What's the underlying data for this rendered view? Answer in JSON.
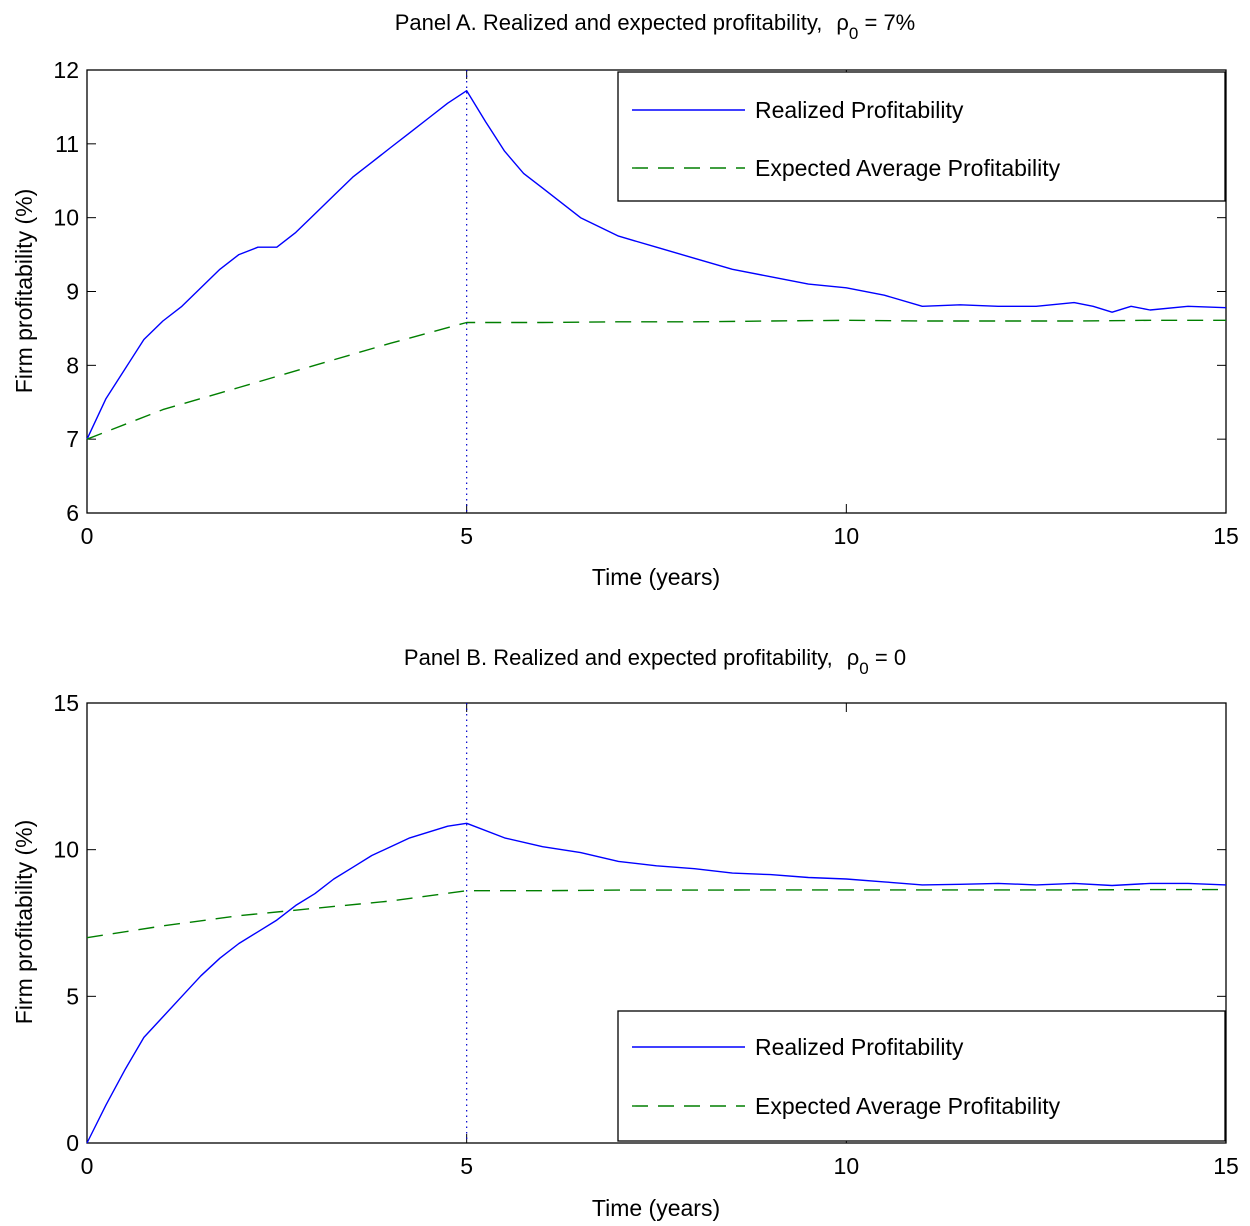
{
  "chart_data": [
    {
      "type": "line",
      "panel": "A",
      "title": "Panel A.   Realized and expected profitability,",
      "title_symbol": "ρ",
      "title_subscript": "0",
      "title_suffix": " = 7%",
      "xlabel": "Time (years)",
      "ylabel": "Firm profitability (%)",
      "xlim": [
        0,
        15
      ],
      "ylim": [
        6,
        12
      ],
      "xticks": [
        0,
        5,
        10,
        15
      ],
      "yticks": [
        6,
        7,
        8,
        9,
        10,
        11,
        12
      ],
      "grid": false,
      "legend_position": "top-right",
      "vline_x": 5,
      "series": [
        {
          "name": "Realized Profitability",
          "color": "#0000ff",
          "style": "solid",
          "x": [
            0,
            0.25,
            0.5,
            0.75,
            1.0,
            1.25,
            1.5,
            1.75,
            2.0,
            2.25,
            2.5,
            2.75,
            3.0,
            3.25,
            3.5,
            3.75,
            4.0,
            4.25,
            4.5,
            4.75,
            5.0,
            5.25,
            5.5,
            5.75,
            6.0,
            6.5,
            7.0,
            7.5,
            8.0,
            8.5,
            9.0,
            9.5,
            10.0,
            10.5,
            11.0,
            11.5,
            12.0,
            12.5,
            13.0,
            13.25,
            13.5,
            13.75,
            14.0,
            14.5,
            15.0
          ],
          "y": [
            7.0,
            7.55,
            7.95,
            8.35,
            8.6,
            8.8,
            9.05,
            9.3,
            9.5,
            9.6,
            9.6,
            9.8,
            10.05,
            10.3,
            10.55,
            10.75,
            10.95,
            11.15,
            11.35,
            11.55,
            11.72,
            11.3,
            10.9,
            10.6,
            10.4,
            10.0,
            9.75,
            9.6,
            9.45,
            9.3,
            9.2,
            9.1,
            9.05,
            8.95,
            8.8,
            8.82,
            8.8,
            8.8,
            8.85,
            8.8,
            8.72,
            8.8,
            8.75,
            8.8,
            8.78
          ]
        },
        {
          "name": "Expected Average Profitability",
          "color": "#007f00",
          "style": "dashed",
          "x": [
            0,
            1,
            2,
            3,
            4,
            5,
            6,
            7,
            8,
            9,
            10,
            11,
            12,
            13,
            14,
            15
          ],
          "y": [
            7.0,
            7.4,
            7.7,
            8.0,
            8.3,
            8.58,
            8.58,
            8.59,
            8.59,
            8.6,
            8.61,
            8.6,
            8.6,
            8.6,
            8.61,
            8.61
          ]
        }
      ]
    },
    {
      "type": "line",
      "panel": "B",
      "title": "Panel B.   Realized and expected profitability,",
      "title_symbol": "ρ",
      "title_subscript": "0",
      "title_suffix": " = 0",
      "xlabel": "Time (years)",
      "ylabel": "Firm profitability (%)",
      "xlim": [
        0,
        15
      ],
      "ylim": [
        0,
        15
      ],
      "xticks": [
        0,
        5,
        10,
        15
      ],
      "yticks": [
        0,
        5,
        10,
        15
      ],
      "grid": false,
      "legend_position": "bottom-right",
      "vline_x": 5,
      "series": [
        {
          "name": "Realized Profitability",
          "color": "#0000ff",
          "style": "solid",
          "x": [
            0,
            0.25,
            0.5,
            0.75,
            1.0,
            1.25,
            1.5,
            1.75,
            2.0,
            2.25,
            2.5,
            2.75,
            3.0,
            3.25,
            3.5,
            3.75,
            4.0,
            4.25,
            4.5,
            4.75,
            5.0,
            5.5,
            6.0,
            6.5,
            7.0,
            7.5,
            8.0,
            8.5,
            9.0,
            9.5,
            10.0,
            10.5,
            11.0,
            11.5,
            12.0,
            12.5,
            13.0,
            13.5,
            14.0,
            14.5,
            15.0
          ],
          "y": [
            0.0,
            1.3,
            2.5,
            3.6,
            4.3,
            5.0,
            5.7,
            6.3,
            6.8,
            7.2,
            7.6,
            8.1,
            8.5,
            9.0,
            9.4,
            9.8,
            10.1,
            10.4,
            10.6,
            10.8,
            10.9,
            10.4,
            10.1,
            9.9,
            9.6,
            9.45,
            9.35,
            9.2,
            9.15,
            9.05,
            9.0,
            8.9,
            8.8,
            8.82,
            8.85,
            8.8,
            8.85,
            8.78,
            8.85,
            8.85,
            8.8
          ]
        },
        {
          "name": "Expected Average Profitability",
          "color": "#007f00",
          "style": "dashed",
          "x": [
            0,
            1,
            2,
            3,
            4,
            5,
            6,
            7,
            8,
            9,
            10,
            11,
            12,
            13,
            14,
            15
          ],
          "y": [
            7.0,
            7.4,
            7.75,
            8.0,
            8.25,
            8.6,
            8.6,
            8.62,
            8.62,
            8.63,
            8.63,
            8.63,
            8.63,
            8.63,
            8.64,
            8.64
          ]
        }
      ]
    }
  ]
}
